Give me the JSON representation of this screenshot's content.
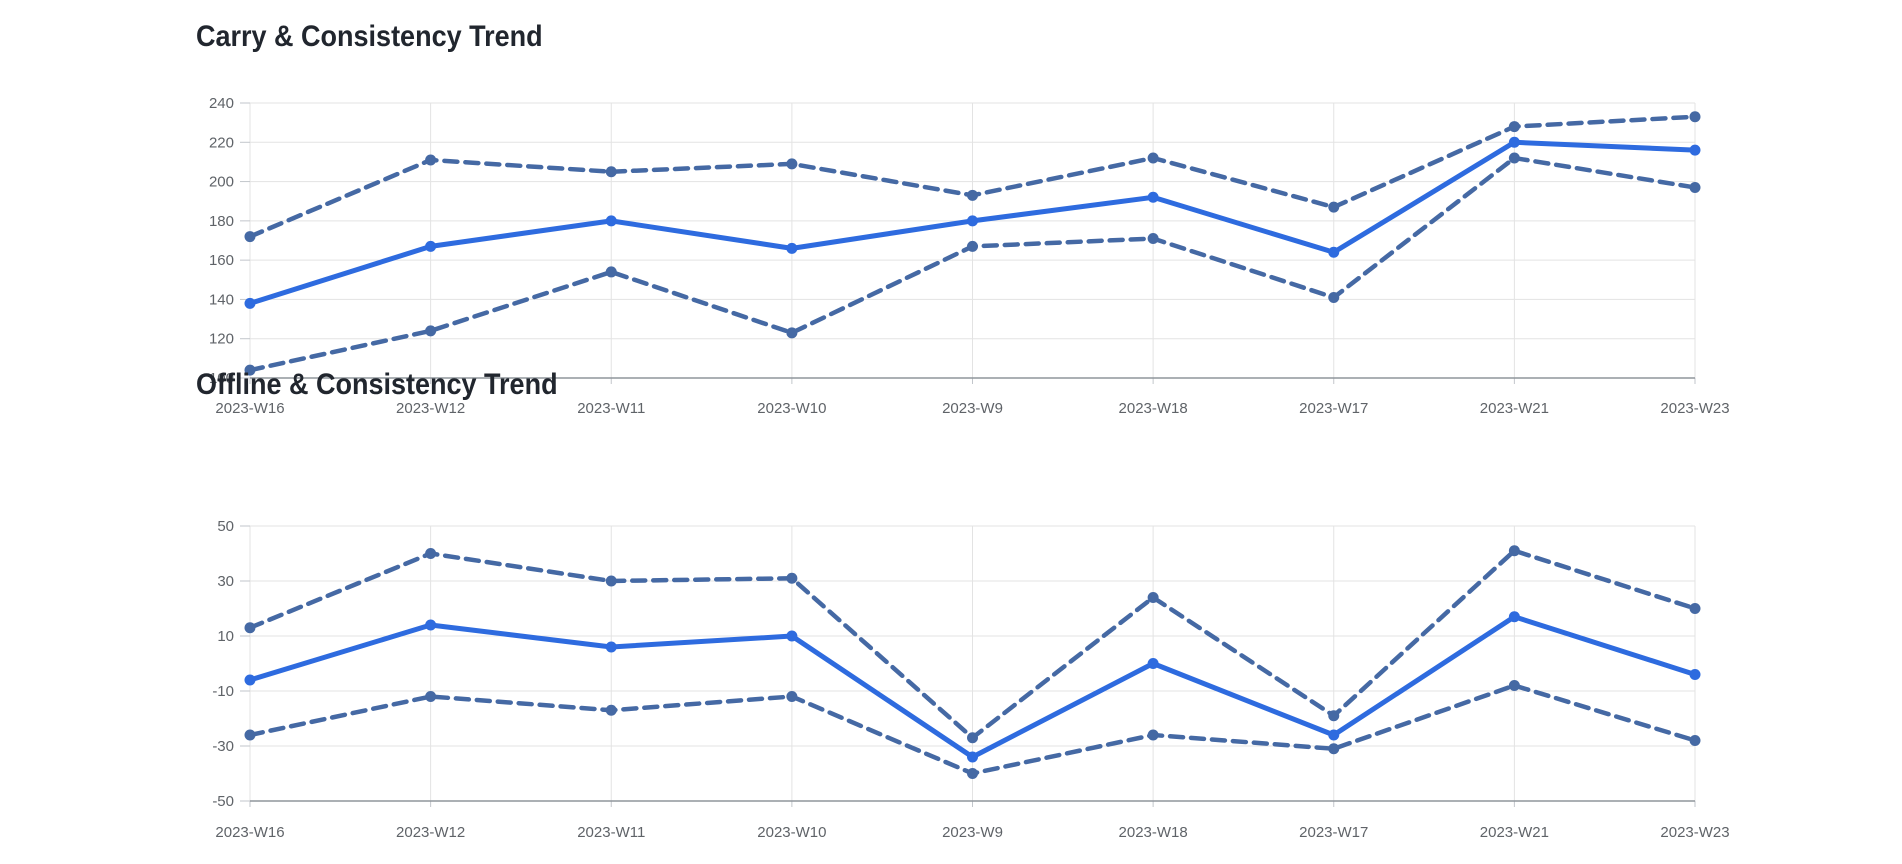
{
  "page": {
    "background": "#ffffff"
  },
  "palette": {
    "solid_line": "#2e6bdf",
    "dashed_line": "#4569a4",
    "gridline": "#e3e3e3",
    "axis_line": "#8f959c",
    "tick_line": "#c2c6cb",
    "tick_label": "#5f6368",
    "title_text": "#21262e"
  },
  "chart_data": [
    {
      "type": "line",
      "title": "Carry & Consistency Trend",
      "xlabel": "",
      "ylabel": "",
      "legend": "none",
      "grid": true,
      "categories": [
        "2023-W16",
        "2023-W12",
        "2023-W11",
        "2023-W10",
        "2023-W9",
        "2023-W18",
        "2023-W17",
        "2023-W21",
        "2023-W23"
      ],
      "series": [
        {
          "name": "upper-band",
          "style": "dashed",
          "values": [
            172,
            211,
            205,
            209,
            193,
            212,
            187,
            228,
            233
          ]
        },
        {
          "name": "carry-mean",
          "style": "solid",
          "values": [
            138,
            167,
            180,
            166,
            180,
            192,
            164,
            220,
            216
          ]
        },
        {
          "name": "lower-band",
          "style": "dashed",
          "values": [
            104,
            124,
            154,
            123,
            167,
            171,
            141,
            212,
            197
          ]
        }
      ],
      "ylim": [
        100,
        240
      ],
      "yticks": [
        240,
        220,
        200,
        180,
        160,
        140,
        120,
        100
      ]
    },
    {
      "type": "line",
      "title": "Offline & Consistency Trend",
      "xlabel": "",
      "ylabel": "",
      "legend": "none",
      "grid": true,
      "categories": [
        "2023-W16",
        "2023-W12",
        "2023-W11",
        "2023-W10",
        "2023-W9",
        "2023-W18",
        "2023-W17",
        "2023-W21",
        "2023-W23"
      ],
      "series": [
        {
          "name": "upper-band",
          "style": "dashed",
          "values": [
            13,
            40,
            30,
            31,
            -27,
            24,
            -19,
            41,
            20
          ]
        },
        {
          "name": "offline-mean",
          "style": "solid",
          "values": [
            -6,
            14,
            6,
            10,
            -34,
            0,
            -26,
            17,
            -4
          ]
        },
        {
          "name": "lower-band",
          "style": "dashed",
          "values": [
            -26,
            -12,
            -17,
            -12,
            -40,
            -26,
            -31,
            -8,
            -28
          ]
        }
      ],
      "ylim": [
        -50,
        50
      ],
      "yticks": [
        50,
        30,
        10,
        -10,
        -30,
        -50
      ]
    }
  ]
}
